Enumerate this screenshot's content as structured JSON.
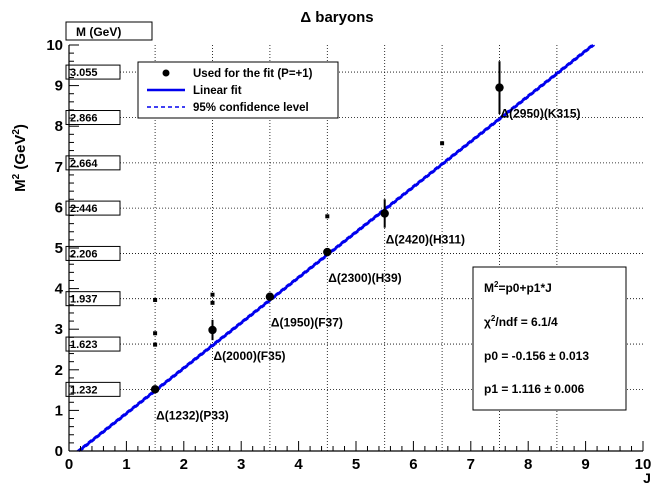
{
  "chart_data": {
    "type": "scatter",
    "title": "Δ baryons",
    "xlabel": "J",
    "ylabel_main": "M",
    "ylabel_sup": "2",
    "ylabel_unit_open": " (GeV",
    "ylabel_unit_sup": "2",
    "ylabel_unit_close": ")",
    "xlim": [
      0,
      10
    ],
    "ylim": [
      0,
      10
    ],
    "x_ticks": [
      "0",
      "1",
      "2",
      "3",
      "4",
      "5",
      "6",
      "7",
      "8",
      "9",
      "10"
    ],
    "y_ticks": [
      "0",
      "1",
      "2",
      "3",
      "4",
      "5",
      "6",
      "7",
      "8",
      "9",
      "10"
    ],
    "mass_axis_title": "M (GeV)",
    "mass_labels": [
      {
        "text": "1.232",
        "m2": 1.518
      },
      {
        "text": "1.623",
        "m2": 2.634
      },
      {
        "text": "1.937",
        "m2": 3.752
      },
      {
        "text": "2.206",
        "m2": 4.866
      },
      {
        "text": "2.446",
        "m2": 5.983
      },
      {
        "text": "2.664",
        "m2": 7.097
      },
      {
        "text": "2.866",
        "m2": 8.214
      },
      {
        "text": "3.055",
        "m2": 9.333
      }
    ],
    "fit_points": [
      {
        "x": 1.5,
        "y": 1.52,
        "err": 0.08,
        "label": "Δ(1232)(P33)"
      },
      {
        "x": 2.5,
        "y": 2.98,
        "err": 0.25,
        "label": "Δ(2000)(F35)"
      },
      {
        "x": 3.5,
        "y": 3.8,
        "err": 0.08,
        "label": "Δ(1950)(F37)"
      },
      {
        "x": 4.5,
        "y": 4.9,
        "err": 0.1,
        "label": "Δ(2300)(H39)"
      },
      {
        "x": 5.5,
        "y": 5.85,
        "err": 0.35,
        "label": "Δ(2420)(H311)"
      },
      {
        "x": 7.5,
        "y": 8.95,
        "err": 0.65,
        "label": "Δ(2950)(K315)"
      }
    ],
    "other_points": [
      {
        "x": 1.5,
        "y": 3.72
      },
      {
        "x": 1.5,
        "y": 2.9
      },
      {
        "x": 1.5,
        "y": 2.62
      },
      {
        "x": 2.5,
        "y": 3.85
      },
      {
        "x": 2.5,
        "y": 3.65
      },
      {
        "x": 4.5,
        "y": 5.78
      },
      {
        "x": 6.5,
        "y": 7.58
      }
    ],
    "fit": {
      "p0": -0.156,
      "p1": 1.116
    },
    "legend": {
      "position": "top-left",
      "entries": [
        "Used for the fit (P=+1)",
        "Linear fit",
        "95% confidence level"
      ]
    },
    "stats_box": {
      "position": "bottom-right",
      "formula_prefix": "M",
      "formula_sup": "2",
      "formula_rest": "=p0+p1*J",
      "chi_prefix": "χ",
      "chi_sup": "2",
      "chi_rest": "/ndf = 6.1/4",
      "p0_text": "p0 = -0.156 ± 0.013",
      "p1_text": "p1 = 1.116 ± 0.006"
    },
    "colors": {
      "fit_line": "#0000ee",
      "points": "#000000",
      "grid": "#000000"
    },
    "grid": "dotted vertical at half-integer J; dotted horizontal at mass levels"
  }
}
